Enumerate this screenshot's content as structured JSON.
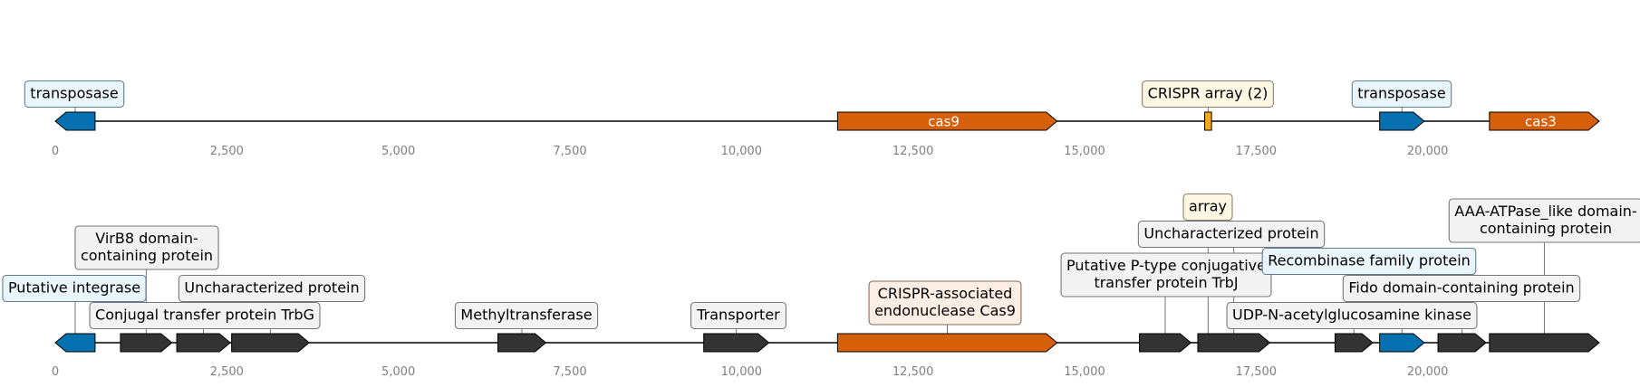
{
  "colors": {
    "dark": "#333333",
    "blue": "#0571b0",
    "orange": "#d6600a",
    "yellow": "#f1a81a",
    "callout_blue_bg": "#e9f4fb",
    "callout_blue_border": "#5c7f93",
    "callout_orange_bg": "#fbeee4",
    "callout_orange_border": "#8c6a56",
    "callout_yellow_bg": "#fdf6e3",
    "callout_yellow_border": "#8c7f66",
    "callout_grey_bg": "#f2f2f2",
    "callout_grey_border": "#777777",
    "axis_text": "#808080"
  },
  "axis_ticks": [
    {
      "value": 0,
      "label": "0"
    },
    {
      "value": 2500,
      "label": "2,500"
    },
    {
      "value": 5000,
      "label": "5,000"
    },
    {
      "value": 7500,
      "label": "7,500"
    },
    {
      "value": 10000,
      "label": "10,000"
    },
    {
      "value": 12500,
      "label": "12,500"
    },
    {
      "value": 15000,
      "label": "15,000"
    },
    {
      "value": 17500,
      "label": "17,500"
    },
    {
      "value": 20000,
      "label": "20,000"
    }
  ],
  "tracks": [
    {
      "name": "summary-track",
      "length": 22500,
      "features": [
        {
          "start": 0,
          "end": 580,
          "strand": -1,
          "color": "blue",
          "label": "",
          "callout": "transposase",
          "callout_color": "blue"
        },
        {
          "start": 11400,
          "end": 14600,
          "strand": 1,
          "color": "orange",
          "label": "cas9"
        },
        {
          "start": 16750,
          "end": 16850,
          "strand": 0,
          "color": "yellow",
          "label": "",
          "callout": "CRISPR array (2)",
          "callout_color": "yellow"
        },
        {
          "start": 19300,
          "end": 19950,
          "strand": 1,
          "color": "blue",
          "label": "",
          "callout": "transposase",
          "callout_color": "blue"
        },
        {
          "start": 20900,
          "end": 22500,
          "strand": 1,
          "color": "orange",
          "label": "cas3"
        }
      ]
    },
    {
      "name": "detail-track",
      "length": 22500,
      "features": [
        {
          "start": 0,
          "end": 580,
          "strand": -1,
          "color": "blue",
          "callout": "Putative integrase",
          "callout_color": "blue"
        },
        {
          "start": 950,
          "end": 1700,
          "strand": 1,
          "color": "dark",
          "callout": "VirB8 domain-\ncontaining protein",
          "callout_color": "grey"
        },
        {
          "start": 1770,
          "end": 2550,
          "strand": 1,
          "color": "dark",
          "callout": "Conjugal transfer protein TrbG",
          "callout_color": "grey"
        },
        {
          "start": 2570,
          "end": 3700,
          "strand": 1,
          "color": "dark",
          "callout": "Uncharacterized protein",
          "callout_color": "grey"
        },
        {
          "start": 6450,
          "end": 7150,
          "strand": 1,
          "color": "dark",
          "callout": "Methyltransferase",
          "callout_color": "grey"
        },
        {
          "start": 9450,
          "end": 10400,
          "strand": 1,
          "color": "dark",
          "callout": "Transporter",
          "callout_color": "grey"
        },
        {
          "start": 11400,
          "end": 14600,
          "strand": 1,
          "color": "orange",
          "callout": "CRISPR-associated\nendonuclease Cas9",
          "callout_color": "orange"
        },
        {
          "start": 15800,
          "end": 16550,
          "strand": 1,
          "color": "dark",
          "callout": "Putative P-type conjugative\ntransfer protein TrbJ",
          "callout_color": "grey"
        },
        {
          "start": 16750,
          "end": 16850,
          "strand": 1,
          "color": "yellow",
          "callout": "array",
          "callout_color": "yellow"
        },
        {
          "start": 16650,
          "end": 17700,
          "strand": 1,
          "color": "dark",
          "callout": "Uncharacterized protein",
          "callout_color": "grey"
        },
        {
          "start": 18650,
          "end": 19200,
          "strand": 1,
          "color": "dark",
          "callout": "UDP-N-acetylglucosamine kinase",
          "callout_color": "grey"
        },
        {
          "start": 19300,
          "end": 19950,
          "strand": 1,
          "color": "blue",
          "callout": "Recombinase family protein",
          "callout_color": "blue"
        },
        {
          "start": 20150,
          "end": 20850,
          "strand": 1,
          "color": "dark",
          "callout": "Fido domain-containing protein",
          "callout_color": "grey"
        },
        {
          "start": 20900,
          "end": 22500,
          "strand": 1,
          "color": "dark",
          "callout": "AAA-ATPase_like domain-\ncontaining protein",
          "callout_color": "grey"
        }
      ]
    }
  ]
}
